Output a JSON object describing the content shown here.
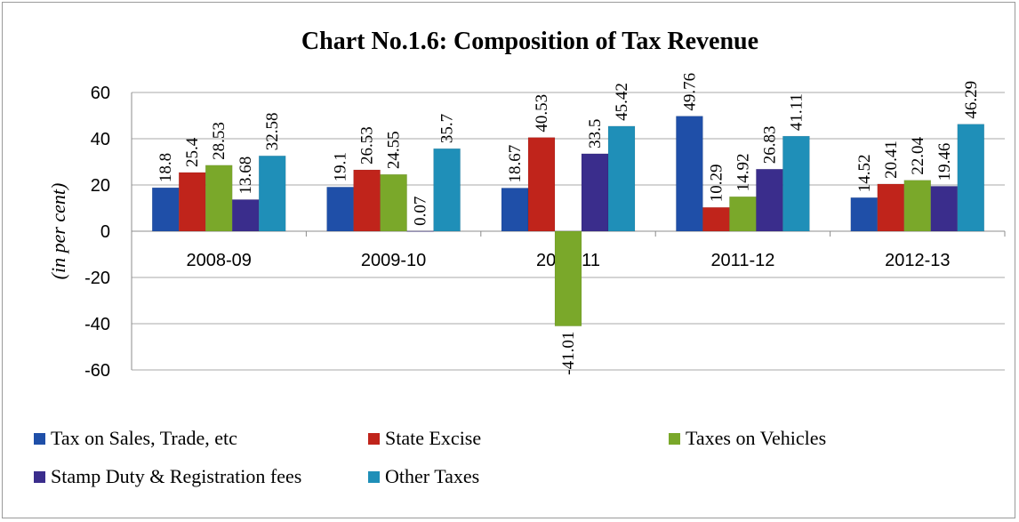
{
  "chart_data": {
    "type": "bar",
    "title": "Chart No.1.6: Composition of Tax Revenue",
    "ylabel": "(in per cent)",
    "xlabel": "",
    "categories": [
      "2008-09",
      "2009-10",
      "2010-11",
      "2011-12",
      "2012-13"
    ],
    "ylim": [
      -60,
      60
    ],
    "yticks": [
      60,
      40,
      20,
      0,
      -20,
      -40,
      -60
    ],
    "grid": true,
    "legend_position": "bottom",
    "series": [
      {
        "name": "Tax on Sales, Trade, etc",
        "color": "#1f4fa8",
        "values": [
          18.8,
          19.1,
          18.67,
          49.76,
          14.52
        ],
        "labels": [
          "18.8",
          "19.1",
          "18.67",
          "49.76",
          "14.52"
        ]
      },
      {
        "name": "State Excise",
        "color": "#c0241b",
        "values": [
          25.4,
          26.53,
          40.53,
          10.29,
          20.41
        ],
        "labels": [
          "25.4",
          "26.53",
          "40.53",
          "10.29",
          "20.41"
        ]
      },
      {
        "name": "Taxes on Vehicles",
        "color": "#7aa82a",
        "values": [
          28.53,
          24.55,
          -41.01,
          14.92,
          22.04
        ],
        "labels": [
          "28.53",
          "24.55",
          "-41.01",
          "14.92",
          "22.04"
        ]
      },
      {
        "name": "Stamp Duty & Registration fees",
        "color": "#3a2d8c",
        "values": [
          13.68,
          0.07,
          33.5,
          26.83,
          19.46
        ],
        "labels": [
          "13.68",
          "0.07",
          "33.5",
          "26.83",
          "19.46"
        ]
      },
      {
        "name": "Other Taxes",
        "color": "#1f8fb8",
        "values": [
          32.58,
          35.7,
          45.42,
          41.11,
          46.29
        ],
        "labels": [
          "32.58",
          "35.7",
          "45.42",
          "41.11",
          "46.29"
        ]
      }
    ]
  }
}
